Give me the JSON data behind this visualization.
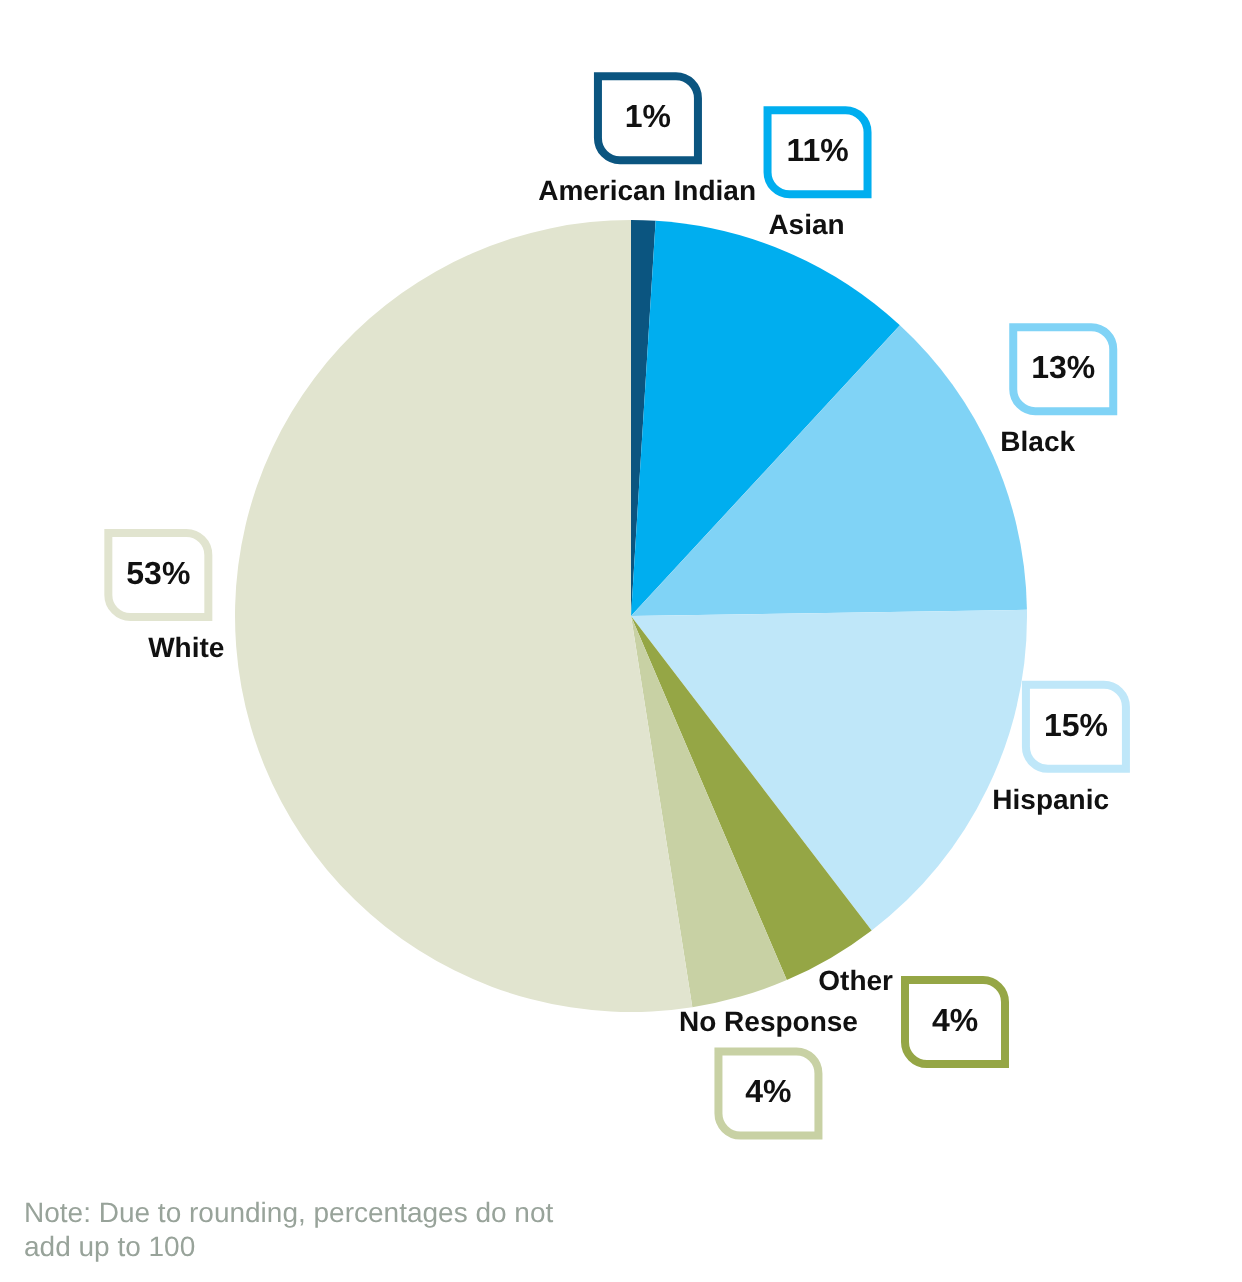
{
  "chart_data": {
    "type": "pie",
    "categories": [
      "American Indian",
      "Asian",
      "Black",
      "Hispanic",
      "Other",
      "No Response",
      "White"
    ],
    "values": [
      1,
      11,
      13,
      15,
      4,
      4,
      53
    ],
    "value_labels": [
      "1%",
      "11%",
      "13%",
      "15%",
      "4%",
      "4%",
      "53%"
    ],
    "colors": [
      "#0b5580",
      "#00aeef",
      "#80d3f6",
      "#bfe7f9",
      "#95a645",
      "#c8d1a4",
      "#e1e4cf"
    ],
    "legend": false,
    "annotations": [
      "Note: Due to rounding, percentages do not add up to 100"
    ]
  }
}
